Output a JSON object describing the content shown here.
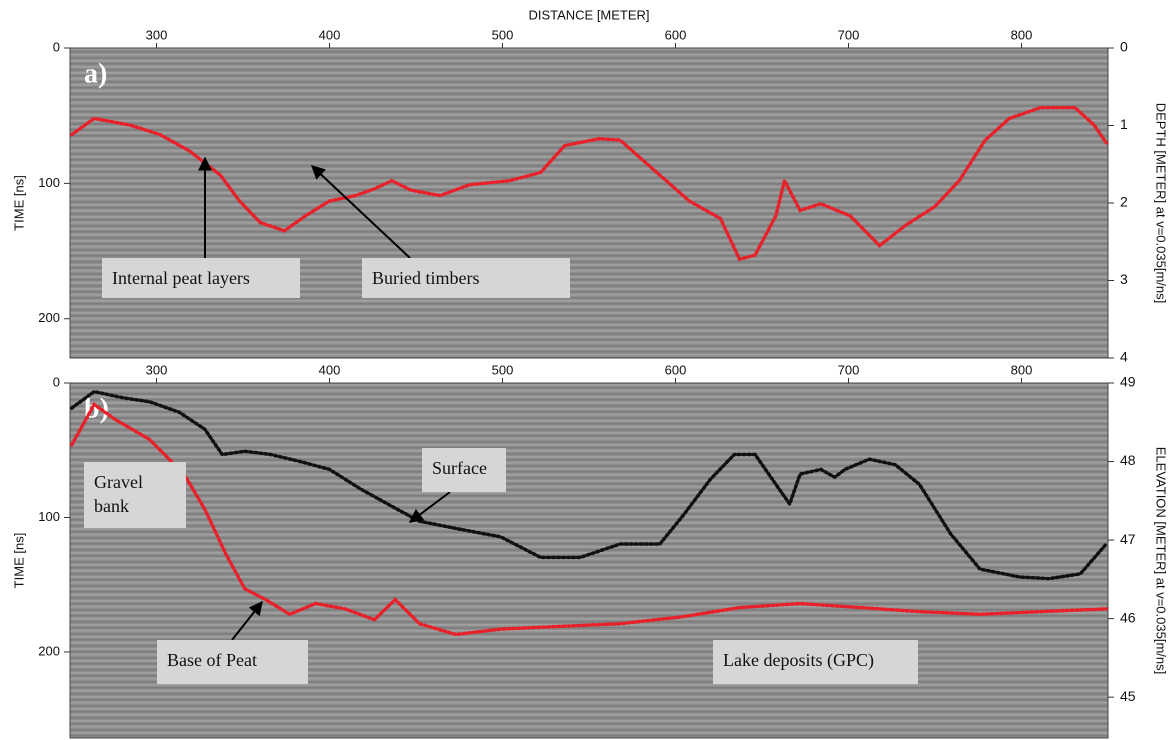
{
  "chart_data": [
    {
      "type": "line",
      "panel_label": "a)",
      "xlabel": "DISTANCE [METER]",
      "ylabel": "TIME [ns]",
      "y2label": "DEPTH [METER] at v=0.035[m/ns]",
      "xlim": [
        250,
        850
      ],
      "xticks": [
        300,
        400,
        500,
        600,
        700,
        800
      ],
      "ylim": [
        0,
        229
      ],
      "yticks": [
        0,
        100,
        200
      ],
      "y2lim": [
        0,
        4
      ],
      "y2ticks": [
        0,
        1,
        2,
        3,
        4
      ],
      "series": [
        {
          "color": "#e8202a",
          "style": "dotted",
          "x": [
            251,
            264,
            285,
            302,
            319,
            337,
            348,
            360,
            374,
            386,
            400,
            415,
            426,
            436,
            447,
            464,
            481,
            504,
            522,
            536,
            556,
            568,
            591,
            608,
            626,
            637,
            646,
            658,
            663,
            672,
            684,
            701,
            718,
            733,
            750,
            764,
            779,
            793,
            811,
            831,
            842,
            849
          ],
          "values": [
            64,
            52,
            57,
            64,
            76,
            94,
            113,
            129,
            135,
            124,
            113,
            109,
            104,
            98,
            105,
            109,
            101,
            98,
            92,
            72,
            67,
            68,
            94,
            113,
            126,
            156,
            153,
            124,
            98,
            120,
            115,
            124,
            146,
            131,
            117,
            98,
            68,
            52,
            44,
            44,
            57,
            70
          ]
        }
      ],
      "annotations": [
        "Internal peat layers",
        "Buried timbers"
      ]
    },
    {
      "type": "line",
      "panel_label": "b)",
      "ylabel": "TIME [ns]",
      "y2label": "ELEVATION [METER] at v=0.035[m/ns]",
      "xlim": [
        250,
        850
      ],
      "xticks": [
        300,
        400,
        500,
        600,
        700,
        800
      ],
      "ylim": [
        0,
        264
      ],
      "yticks": [
        0,
        100,
        200
      ],
      "y2lim": [
        49,
        44.48
      ],
      "y2ticks": [
        49,
        48,
        47,
        46,
        45
      ],
      "series": [
        {
          "color": "#e8202a",
          "style": "dotted",
          "x": [
            251,
            264,
            276,
            296,
            316,
            328,
            340,
            351,
            363,
            377,
            392,
            409,
            426,
            438,
            452,
            473,
            499,
            533,
            568,
            603,
            637,
            672,
            707,
            741,
            776,
            811,
            849
          ],
          "values": [
            46,
            16,
            27,
            42,
            68,
            94,
            127,
            153,
            161,
            172,
            164,
            168,
            176,
            161,
            179,
            187,
            183,
            181,
            179,
            174,
            167,
            164,
            167,
            170,
            172,
            170,
            168
          ]
        },
        {
          "color": "#111111",
          "style": "dotted",
          "axis": "y2",
          "x": [
            251,
            264,
            281,
            296,
            313,
            328,
            338,
            351,
            366,
            383,
            400,
            418,
            441,
            452,
            475,
            499,
            522,
            545,
            568,
            591,
            605,
            620,
            634,
            646,
            658,
            666,
            672,
            684,
            692,
            698,
            712,
            727,
            741,
            759,
            776,
            799,
            816,
            834,
            849
          ],
          "values": [
            48.68,
            48.89,
            48.81,
            48.76,
            48.63,
            48.41,
            48.09,
            48.13,
            48.09,
            48.0,
            47.9,
            47.65,
            47.37,
            47.24,
            47.14,
            47.04,
            46.78,
            46.78,
            46.95,
            46.95,
            47.33,
            47.77,
            48.09,
            48.09,
            47.71,
            47.46,
            47.84,
            47.9,
            47.8,
            47.9,
            48.03,
            47.96,
            47.71,
            47.08,
            46.63,
            46.53,
            46.51,
            46.57,
            46.95
          ]
        }
      ],
      "annotations": [
        "Surface",
        "Gravel bank",
        "Base of Peat",
        "Lake deposits (GPC)"
      ]
    }
  ]
}
